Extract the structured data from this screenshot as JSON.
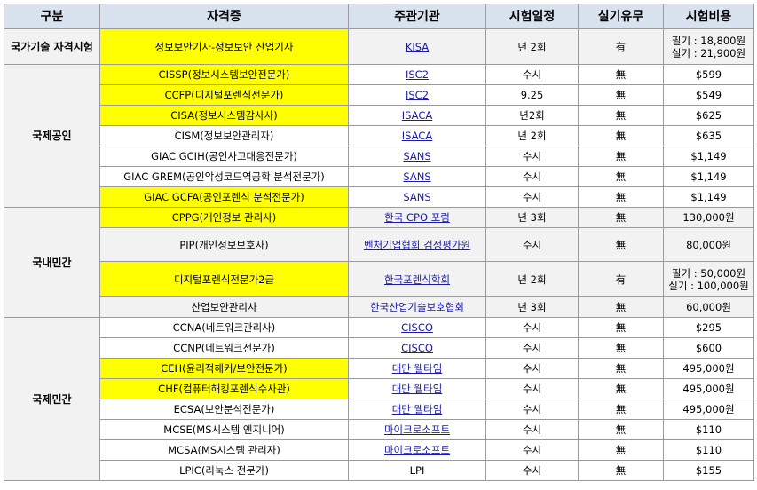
{
  "headers": [
    "구분",
    "자격증",
    "주관기관",
    "시험일정",
    "실기유무",
    "시험비용"
  ],
  "groups": [
    {
      "label": "국가기술 자격시험",
      "rows": [
        {
          "cert": "정보보안기사-정보보안 산업기사",
          "org": "KISA",
          "schedule": "년 2회",
          "practical": "有",
          "cost": [
            "필기 : 18,800원",
            "실기 : 21,900원"
          ]
        }
      ]
    },
    {
      "label": "국제공인",
      "rows": [
        {
          "cert": "CISSP(정보시스템보안전문가)",
          "org": "ISC2",
          "schedule": "수시",
          "practical": "無",
          "cost": [
            "$599"
          ]
        },
        {
          "cert": "CCFP(디지털포렌식전문가)",
          "org": "ISC2",
          "schedule": "9.25",
          "practical": "無",
          "cost": [
            "$549"
          ]
        },
        {
          "cert": "CISA(정보시스템감사사)",
          "org": "ISACA",
          "schedule": "년2회",
          "practical": "無",
          "cost": [
            "$625"
          ]
        },
        {
          "cert": "CISM(정보보안관리자)",
          "org": "ISACA",
          "schedule": "년 2회",
          "practical": "無",
          "cost": [
            "$635"
          ]
        },
        {
          "cert": "GIAC GCIH(공인사고대응전문가)",
          "org": "SANS",
          "schedule": "수시",
          "practical": "無",
          "cost": [
            "$1,149"
          ]
        },
        {
          "cert": "GIAC GREM(공인악성코드역공학 분석전문가)",
          "org": "SANS",
          "schedule": "수시",
          "practical": "無",
          "cost": [
            "$1,149"
          ]
        },
        {
          "cert": "GIAC GCFA(공인포렌식 분석전문가)",
          "org": "SANS",
          "schedule": "수시",
          "practical": "無",
          "cost": [
            "$1,149"
          ]
        }
      ]
    },
    {
      "label": "국내민간",
      "rows": [
        {
          "cert": "CPPG(개인정보 관리사)",
          "org": "한국 CPO 포럼",
          "schedule": "년 3회",
          "practical": "無",
          "cost": [
            "130,000원"
          ]
        },
        {
          "cert": "PIP(개인정보보호사)",
          "org": "벤처기업협회 검정평가원",
          "schedule": "수시",
          "practical": "無",
          "cost": [
            "80,000원"
          ]
        },
        {
          "cert": "디지털포렌식전문가2급",
          "org": "한국포렌식학회",
          "schedule": "년 2회",
          "practical": "有",
          "cost": [
            "필기 : 50,000원",
            "실기 : 100,000원"
          ]
        },
        {
          "cert": "산업보안관리사",
          "org": "한국산업기술보호협회",
          "schedule": "년 3회",
          "practical": "無",
          "cost": [
            "60,000원"
          ]
        }
      ]
    },
    {
      "label": "국제민간",
      "rows": [
        {
          "cert": "CCNA(네트워크관리사)",
          "org": "CISCO",
          "schedule": "수시",
          "practical": "無",
          "cost": [
            "$295"
          ]
        },
        {
          "cert": "CCNP(네트워크전문가)",
          "org": "CISCO",
          "schedule": "수시",
          "practical": "無",
          "cost": [
            "$600"
          ]
        },
        {
          "cert": "CEH(윤리적해커/보안전문가)",
          "org": "대만 웰타임",
          "schedule": "수시",
          "practical": "無",
          "cost": [
            "495,000원"
          ]
        },
        {
          "cert": "CHF(컴퓨터해킹포렌식수사관)",
          "org": "대만 웰타임",
          "schedule": "수시",
          "practical": "無",
          "cost": [
            "495,000원"
          ]
        },
        {
          "cert": "ECSA(보안분석전문가)",
          "org": "대만 웰타임",
          "schedule": "수시",
          "practical": "無",
          "cost": [
            "495,000원"
          ]
        },
        {
          "cert": "MCSE(MS시스템 엔지니어)",
          "org": "마이크로소프트",
          "schedule": "수시",
          "practical": "無",
          "cost": [
            "$110"
          ]
        },
        {
          "cert": "MCSA(MS시스템 관리자)",
          "org": "마이크로소프트",
          "schedule": "수시",
          "practical": "無",
          "cost": [
            "$110"
          ]
        },
        {
          "cert": "LPIC(리눅스 전문가)",
          "org": "LPI",
          "schedule": "수시",
          "practical": "無",
          "cost": [
            "$155"
          ]
        }
      ]
    }
  ],
  "colors": {
    "header_bg": "#d9e3ef",
    "highlight": "#ffff00",
    "group_bg": "#f2f2f2",
    "link": "#1a1aa6"
  }
}
